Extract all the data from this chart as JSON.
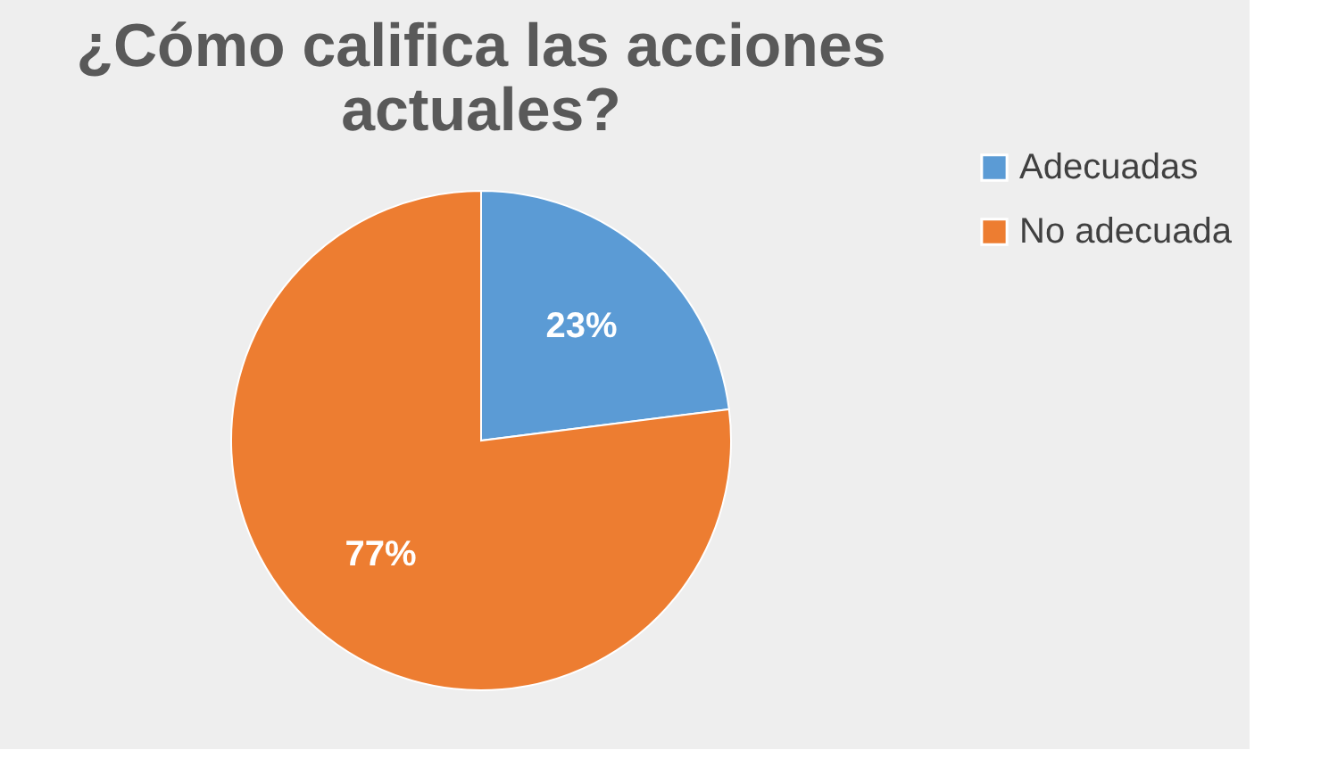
{
  "chart_data": {
    "type": "pie",
    "title": "¿Cómo califica las acciones actuales?",
    "categories": [
      "Adecuadas",
      "No adecuada"
    ],
    "values": [
      23,
      77
    ],
    "colors": [
      "#5b9bd5",
      "#ed7d31"
    ],
    "value_labels": [
      "23%",
      "77%"
    ],
    "legend": "right"
  }
}
